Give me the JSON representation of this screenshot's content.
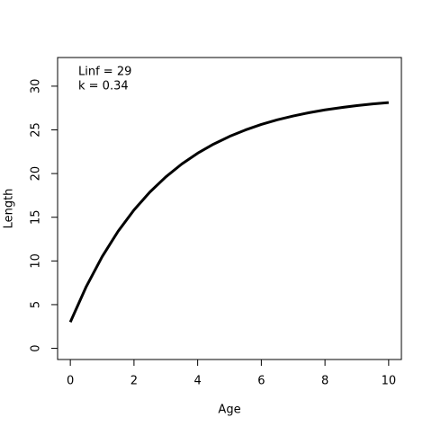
{
  "chart_data": {
    "type": "line",
    "x_label": "Age",
    "y_label": "Length",
    "annotations": [
      "Linf = 29",
      "k = 0.34"
    ],
    "x": [
      0,
      0.5,
      1,
      1.5,
      2,
      2.5,
      3,
      3.5,
      4,
      4.5,
      5,
      5.5,
      6,
      6.5,
      7,
      7.5,
      8,
      8.5,
      9,
      9.5,
      10
    ],
    "series": [
      {
        "color": "#000000",
        "values": [
          3,
          7.06,
          10.49,
          13.39,
          15.83,
          17.89,
          19.62,
          21.09,
          22.33,
          23.37,
          24.25,
          24.99,
          25.62,
          26.15,
          26.59,
          26.97,
          27.29,
          27.55,
          27.78,
          27.97,
          28.13
        ]
      }
    ],
    "xlim": [
      -0.4,
      10.4
    ],
    "xticks": [
      0,
      2,
      4,
      6,
      8,
      10
    ],
    "ylim": [
      -1.28,
      33.28
    ],
    "yticks": [
      0,
      5,
      10,
      15,
      20,
      25,
      30
    ]
  }
}
